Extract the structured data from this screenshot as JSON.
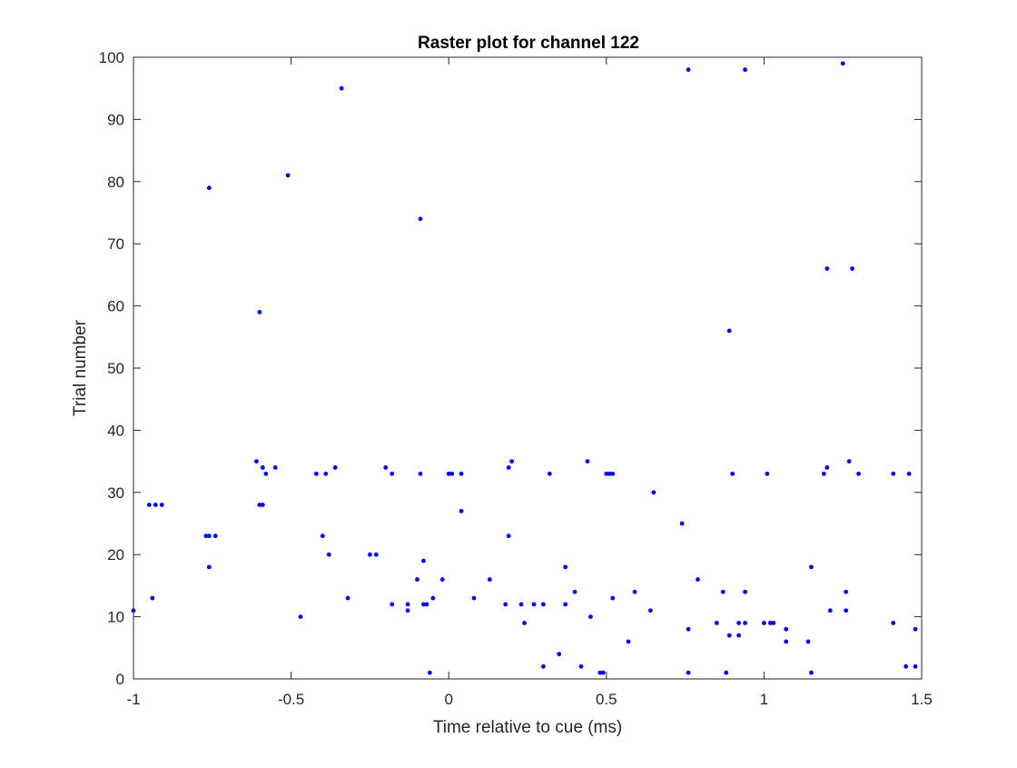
{
  "chart_data": {
    "type": "scatter",
    "title": "Raster plot for channel 122",
    "xlabel": "Time relative to cue (ms)",
    "ylabel": "Trial number",
    "xlim": [
      -1,
      1.5
    ],
    "ylim": [
      0,
      100
    ],
    "xticks": [
      -1,
      -0.5,
      0,
      0.5,
      1,
      1.5
    ],
    "xtick_labels": [
      "-1",
      "-0.5",
      "0",
      "0.5",
      "1",
      "1.5"
    ],
    "yticks": [
      0,
      10,
      20,
      30,
      40,
      50,
      60,
      70,
      80,
      90,
      100
    ],
    "ytick_labels": [
      "0",
      "10",
      "20",
      "30",
      "40",
      "50",
      "60",
      "70",
      "80",
      "90",
      "100"
    ],
    "grid": false,
    "legend": "none",
    "marker_color": "#0000ff",
    "axis_color": "#262626",
    "series": [
      {
        "points": [
          [
            -1.0,
            11
          ],
          [
            -0.95,
            28
          ],
          [
            -0.93,
            28
          ],
          [
            -0.91,
            28
          ],
          [
            -0.94,
            13
          ],
          [
            -0.77,
            23
          ],
          [
            -0.76,
            23
          ],
          [
            -0.74,
            23
          ],
          [
            -0.76,
            18
          ],
          [
            -0.76,
            79
          ],
          [
            -0.61,
            35
          ],
          [
            -0.6,
            28
          ],
          [
            -0.59,
            28
          ],
          [
            -0.59,
            34
          ],
          [
            -0.58,
            33
          ],
          [
            -0.55,
            34
          ],
          [
            -0.6,
            59
          ],
          [
            -0.51,
            81
          ],
          [
            -0.47,
            10
          ],
          [
            -0.42,
            33
          ],
          [
            -0.4,
            23
          ],
          [
            -0.39,
            33
          ],
          [
            -0.38,
            20
          ],
          [
            -0.36,
            34
          ],
          [
            -0.34,
            95
          ],
          [
            -0.32,
            13
          ],
          [
            -0.25,
            20
          ],
          [
            -0.23,
            20
          ],
          [
            -0.2,
            34
          ],
          [
            -0.18,
            33
          ],
          [
            -0.18,
            12
          ],
          [
            -0.13,
            11
          ],
          [
            -0.13,
            12
          ],
          [
            -0.1,
            16
          ],
          [
            -0.09,
            74
          ],
          [
            -0.09,
            33
          ],
          [
            -0.08,
            19
          ],
          [
            -0.08,
            12
          ],
          [
            -0.07,
            12
          ],
          [
            -0.06,
            1
          ],
          [
            -0.05,
            13
          ],
          [
            -0.02,
            16
          ],
          [
            0.0,
            33
          ],
          [
            0.01,
            33
          ],
          [
            0.04,
            27
          ],
          [
            0.04,
            33
          ],
          [
            0.08,
            13
          ],
          [
            0.13,
            16
          ],
          [
            0.18,
            12
          ],
          [
            0.19,
            23
          ],
          [
            0.19,
            34
          ],
          [
            0.2,
            35
          ],
          [
            0.23,
            12
          ],
          [
            0.24,
            9
          ],
          [
            0.27,
            12
          ],
          [
            0.3,
            12
          ],
          [
            0.3,
            2
          ],
          [
            0.32,
            33
          ],
          [
            0.35,
            4
          ],
          [
            0.37,
            18
          ],
          [
            0.37,
            12
          ],
          [
            0.4,
            14
          ],
          [
            0.42,
            2
          ],
          [
            0.44,
            35
          ],
          [
            0.45,
            10
          ],
          [
            0.48,
            1
          ],
          [
            0.49,
            1
          ],
          [
            0.5,
            33
          ],
          [
            0.51,
            33
          ],
          [
            0.52,
            13
          ],
          [
            0.52,
            33
          ],
          [
            0.57,
            6
          ],
          [
            0.59,
            14
          ],
          [
            0.64,
            11
          ],
          [
            0.65,
            30
          ],
          [
            0.74,
            25
          ],
          [
            0.76,
            1
          ],
          [
            0.76,
            8
          ],
          [
            0.76,
            98
          ],
          [
            0.79,
            16
          ],
          [
            0.85,
            9
          ],
          [
            0.87,
            14
          ],
          [
            0.88,
            1
          ],
          [
            0.89,
            7
          ],
          [
            0.89,
            56
          ],
          [
            0.9,
            33
          ],
          [
            0.92,
            7
          ],
          [
            0.92,
            9
          ],
          [
            0.94,
            14
          ],
          [
            0.94,
            98
          ],
          [
            0.94,
            9
          ],
          [
            1.0,
            9
          ],
          [
            1.01,
            33
          ],
          [
            1.02,
            9
          ],
          [
            1.03,
            9
          ],
          [
            1.07,
            8
          ],
          [
            1.07,
            6
          ],
          [
            1.14,
            6
          ],
          [
            1.15,
            18
          ],
          [
            1.15,
            1
          ],
          [
            1.19,
            33
          ],
          [
            1.2,
            66
          ],
          [
            1.2,
            34
          ],
          [
            1.21,
            11
          ],
          [
            1.25,
            99
          ],
          [
            1.26,
            14
          ],
          [
            1.26,
            11
          ],
          [
            1.27,
            35
          ],
          [
            1.28,
            66
          ],
          [
            1.3,
            33
          ],
          [
            1.41,
            33
          ],
          [
            1.41,
            9
          ],
          [
            1.45,
            2
          ],
          [
            1.46,
            33
          ],
          [
            1.48,
            8
          ],
          [
            1.48,
            2
          ]
        ]
      }
    ]
  }
}
